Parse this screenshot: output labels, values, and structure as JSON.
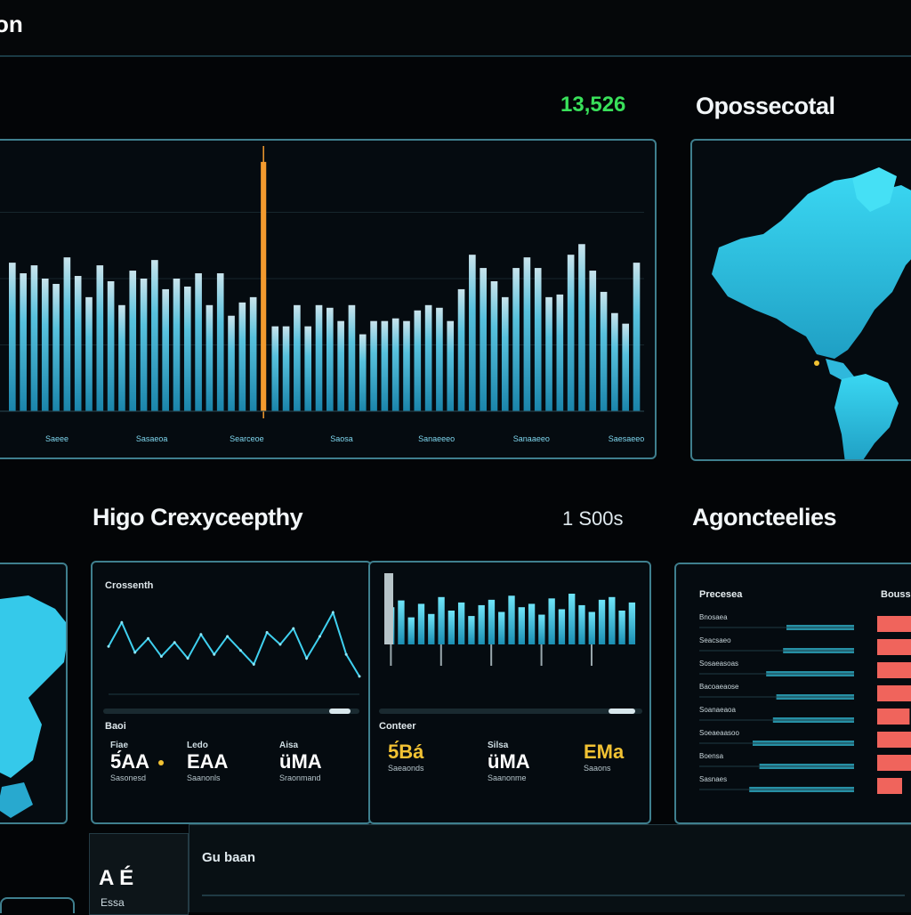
{
  "app": {
    "title": "on"
  },
  "overview": {
    "value": "13,526"
  },
  "geo_panel": {
    "title": "Opossecotal"
  },
  "history": {
    "title": "Higo Crexyceepthy",
    "value": "1 S00s"
  },
  "agenda": {
    "title": "Agoncteelies",
    "col_left": "Precesea",
    "col_right": "Bouss"
  },
  "line_panel": {
    "label": "Crossenth",
    "footer_label": "Baoi",
    "stats": [
      {
        "label": "Fiae",
        "value": "5́AA",
        "caption": "Sasonesd"
      },
      {
        "label": "Ledo",
        "value": "EAA",
        "caption": "Saanonls"
      },
      {
        "label": "Aisa",
        "value": "üMA",
        "caption": "Sraonmand"
      }
    ]
  },
  "bar_panel": {
    "footer_label": "Conteer",
    "stats": [
      {
        "label": "",
        "value": "5́Bá",
        "caption": "Saeaonds"
      },
      {
        "label": "Silsa",
        "value": "üMA",
        "caption": "Saanonme"
      },
      {
        "label": "",
        "value": "EMa",
        "caption": "Saaons"
      }
    ]
  },
  "bottom": {
    "label": "Gu baan",
    "left_value": "A É",
    "left_caption": "Essa"
  },
  "colors": {
    "accent": "#39c7ef",
    "highlight": "#f39a2e",
    "amber": "#f2c233",
    "salmon": "#f0645c",
    "teal": "#2a9db5"
  },
  "chart_data": [
    {
      "type": "bar",
      "title": "",
      "x_tick_labels": [
        "Saeee",
        "Sasaeoa",
        "Searceoe",
        "Saosa",
        "Sanaeeeo",
        "Sanaaeeo",
        "Saesaeeo"
      ],
      "values": [
        56,
        52,
        55,
        50,
        48,
        58,
        51,
        43,
        55,
        49,
        40,
        53,
        50,
        57,
        46,
        50,
        47,
        52,
        40,
        52,
        36,
        41,
        43,
        94,
        32,
        32,
        40,
        32,
        40,
        39,
        34,
        40,
        29,
        34,
        34,
        35,
        34,
        38,
        40,
        39,
        34,
        46,
        59,
        54,
        49,
        43,
        54,
        58,
        54,
        43,
        44,
        59,
        63,
        53,
        45,
        37,
        33,
        56
      ],
      "highlight_index": 23,
      "ylim": [
        0,
        100
      ]
    },
    {
      "type": "line",
      "values": [
        48,
        72,
        42,
        56,
        38,
        52,
        36,
        60,
        40,
        58,
        44,
        30,
        62,
        50,
        66,
        36,
        58,
        82,
        40,
        18
      ],
      "ylim": [
        0,
        100
      ]
    },
    {
      "type": "bar",
      "values": [
        55,
        65,
        40,
        60,
        45,
        70,
        50,
        62,
        42,
        58,
        66,
        48,
        72,
        55,
        60,
        44,
        68,
        52,
        75,
        58,
        48,
        66,
        70,
        50,
        62
      ],
      "ylim": [
        0,
        100
      ]
    },
    {
      "type": "bar",
      "orientation": "horizontal",
      "series": [
        {
          "values": [
            72,
            58,
            60,
            70,
            52,
            64,
            62,
            40
          ]
        },
        {
          "values": [
            40,
            42,
            52,
            46,
            48,
            60,
            56,
            62
          ]
        }
      ],
      "row_labels": [
        "Bnosaea",
        "Seacsaeo",
        "Sosaeasoas",
        "Bacoaeaose",
        "Soanaeaoa",
        "Soeaeaasoo",
        "Boensa",
        "Sasnaes"
      ],
      "xlim": [
        0,
        100
      ]
    }
  ]
}
